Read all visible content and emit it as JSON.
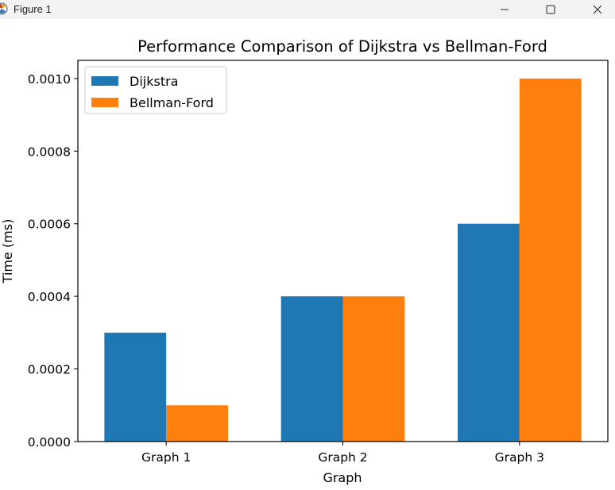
{
  "window": {
    "title": "Figure 1",
    "icons": {
      "app": "matplotlib-figure-icon",
      "minimize": "minimize-icon",
      "maximize": "maximize-icon",
      "close": "close-icon"
    }
  },
  "chart_data": {
    "type": "bar",
    "title": "Performance Comparison of Dijkstra vs Bellman-Ford",
    "xlabel": "Graph",
    "ylabel": "Time (ms)",
    "categories": [
      "Graph 1",
      "Graph 2",
      "Graph 3"
    ],
    "series": [
      {
        "name": "Dijkstra",
        "values": [
          0.0003,
          0.0004,
          0.0006
        ],
        "color": "#1f77b4"
      },
      {
        "name": "Bellman-Ford",
        "values": [
          0.0001,
          0.0004,
          0.001
        ],
        "color": "#ff7f0e"
      }
    ],
    "ylim": [
      0,
      0.00105
    ],
    "yticks": [
      "0.0000",
      "0.0002",
      "0.0004",
      "0.0006",
      "0.0008",
      "0.0010"
    ],
    "ytick_values": [
      0,
      0.0002,
      0.0004,
      0.0006,
      0.0008,
      0.001
    ],
    "grid": false,
    "legend_position": "top-left"
  }
}
